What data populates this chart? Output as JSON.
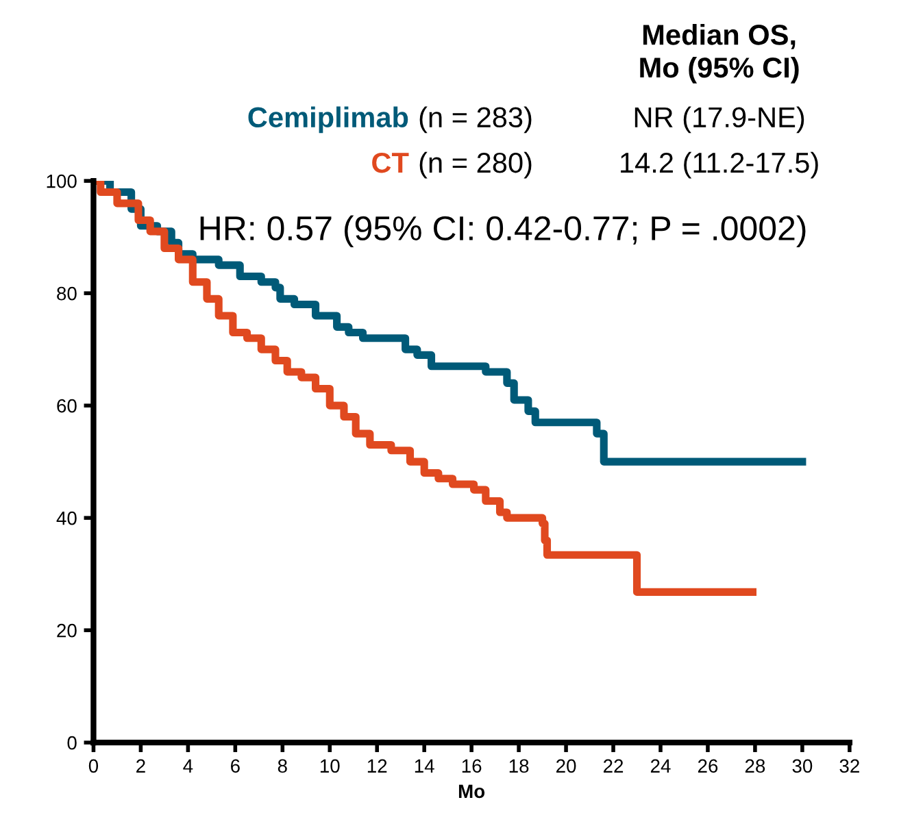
{
  "chart_data": {
    "type": "step",
    "xlabel": "Mo",
    "series": [
      {
        "name": "Cemiplimab",
        "color": "#005a78",
        "x": [
          0,
          0.7,
          1.6,
          2,
          2.7,
          3.3,
          3.6,
          4.2,
          5.3,
          6.2,
          7.1,
          7.7,
          7.9,
          8.5,
          9.4,
          10.3,
          10.8,
          11.4,
          12.9,
          13.2,
          13.7,
          14.3,
          15.8,
          16.6,
          17.2,
          17.5,
          17.8,
          18.4,
          18.7,
          21.3,
          21.6,
          30.0
        ],
        "values": [
          100,
          98,
          95,
          92,
          91,
          89,
          87,
          86,
          85,
          83,
          82,
          81,
          79,
          78,
          76,
          74,
          73,
          72,
          72,
          70,
          69,
          67,
          67,
          66,
          66,
          64,
          61,
          59,
          57,
          55,
          50,
          50
        ]
      },
      {
        "name": "CT",
        "color": "#e0491f",
        "x": [
          0,
          0.3,
          1,
          1.9,
          2.4,
          3,
          3.6,
          4.2,
          4.8,
          5.3,
          5.9,
          6.5,
          7.1,
          7.7,
          8.2,
          8.8,
          9.4,
          10,
          10.6,
          11.1,
          11.7,
          12.6,
          13.4,
          14,
          14.6,
          15.2,
          16.1,
          16.6,
          17.2,
          17.5,
          19,
          19.1,
          19.2,
          23.0,
          27.9
        ],
        "values": [
          100,
          98,
          96,
          93,
          91,
          88,
          86,
          82,
          79,
          76,
          73,
          72,
          70,
          68,
          66,
          65,
          63,
          60,
          58,
          55,
          53,
          52,
          50,
          48,
          47,
          46,
          45,
          43,
          41,
          40,
          39,
          36,
          33.4,
          26.8,
          26.8
        ]
      }
    ],
    "xlim": [
      0,
      32
    ],
    "xticks": [
      0,
      2,
      4,
      6,
      8,
      10,
      12,
      14,
      16,
      18,
      20,
      22,
      24,
      26,
      28,
      30,
      32
    ],
    "ylim": [
      0,
      100
    ],
    "yticks": [
      0,
      20,
      40,
      60,
      80,
      100
    ],
    "annotations": [
      "Median OS,\nMo (95% CI)",
      "(n = 283)",
      "NR (17.9-NE)",
      "(n = 280)",
      "14.2 (11.2-17.5)",
      "HR: 0.57 (95% CI: 0.42-0.77; P = .0002)"
    ],
    "line_style": "solid",
    "marker": "none",
    "grid": false,
    "legend": false
  }
}
